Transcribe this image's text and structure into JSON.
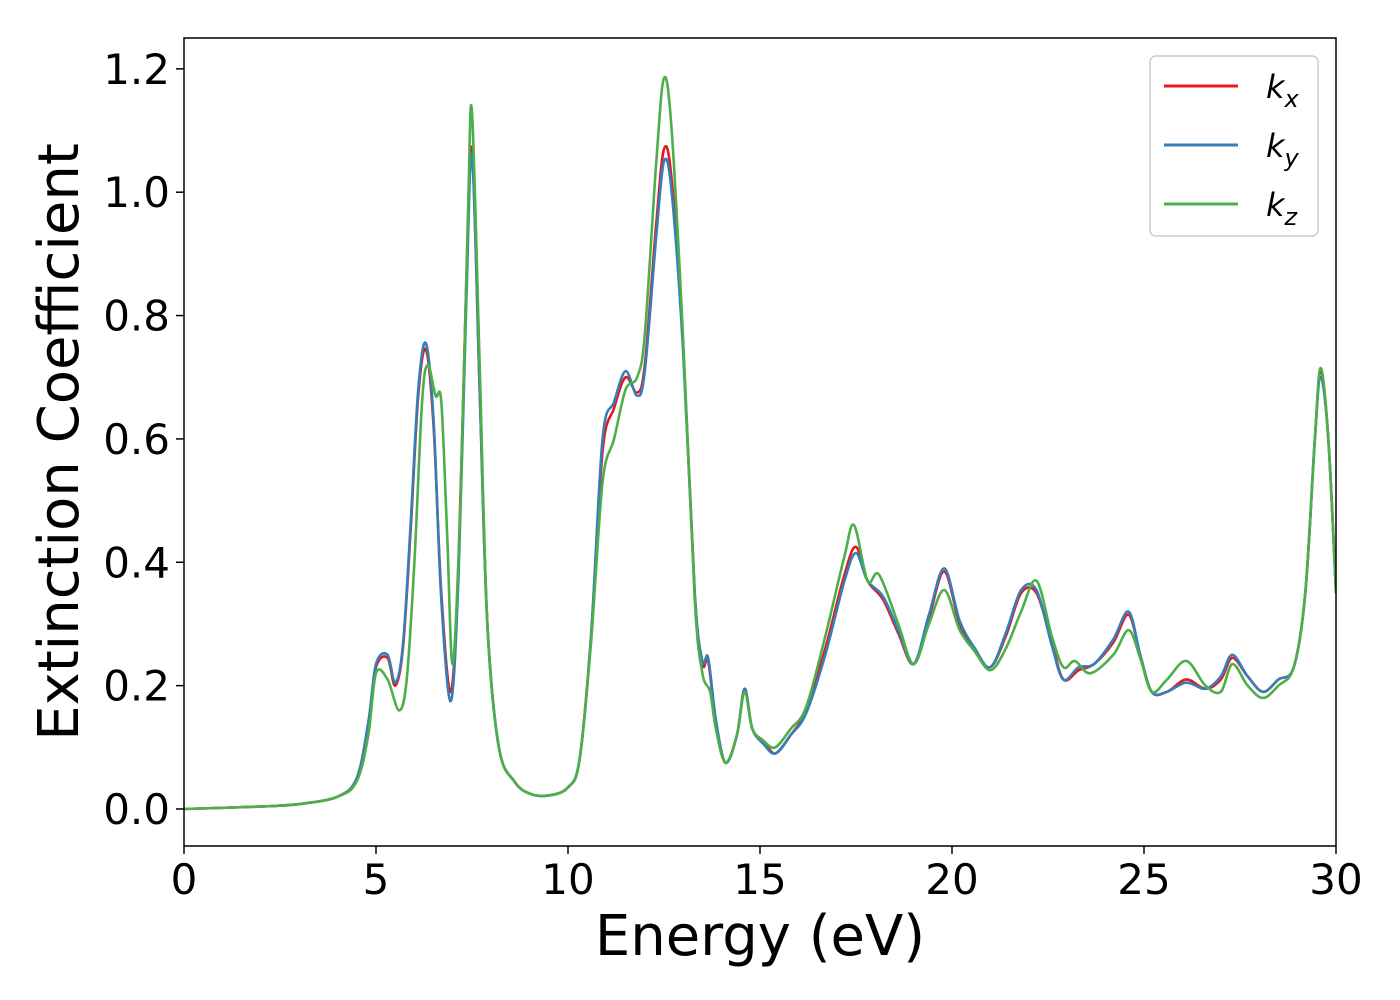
{
  "chart_data": {
    "type": "line",
    "title": "",
    "xlabel": "Energy (eV)",
    "ylabel": "Extinction Coefficient",
    "xlim": [
      0,
      30
    ],
    "ylim": [
      -0.06,
      1.25
    ],
    "xticks": [
      0,
      5,
      10,
      15,
      20,
      25,
      30
    ],
    "xtick_labels": [
      "0",
      "5",
      "10",
      "15",
      "20",
      "25",
      "30"
    ],
    "yticks": [
      0.0,
      0.2,
      0.4,
      0.6,
      0.8,
      1.0,
      1.2
    ],
    "ytick_labels": [
      "0.0",
      "0.2",
      "0.4",
      "0.6",
      "0.8",
      "1.0",
      "1.2"
    ],
    "grid": false,
    "legend_position": "top-right",
    "series": [
      {
        "name": "k_x",
        "label_base": "k",
        "label_sub": "x",
        "color": "#e41a1c",
        "points": [
          [
            0,
            0
          ],
          [
            2,
            0.004
          ],
          [
            3,
            0.008
          ],
          [
            4,
            0.02
          ],
          [
            4.5,
            0.05
          ],
          [
            4.8,
            0.14
          ],
          [
            5.0,
            0.23
          ],
          [
            5.3,
            0.245
          ],
          [
            5.5,
            0.2
          ],
          [
            5.7,
            0.26
          ],
          [
            5.9,
            0.45
          ],
          [
            6.1,
            0.67
          ],
          [
            6.3,
            0.745
          ],
          [
            6.5,
            0.62
          ],
          [
            6.7,
            0.35
          ],
          [
            6.95,
            0.19
          ],
          [
            7.15,
            0.4
          ],
          [
            7.35,
            0.85
          ],
          [
            7.5,
            1.07
          ],
          [
            7.7,
            0.68
          ],
          [
            7.9,
            0.3
          ],
          [
            8.2,
            0.1
          ],
          [
            8.6,
            0.045
          ],
          [
            9.0,
            0.025
          ],
          [
            9.5,
            0.022
          ],
          [
            10.0,
            0.035
          ],
          [
            10.3,
            0.08
          ],
          [
            10.6,
            0.28
          ],
          [
            10.9,
            0.58
          ],
          [
            11.2,
            0.65
          ],
          [
            11.5,
            0.7
          ],
          [
            11.8,
            0.675
          ],
          [
            12.0,
            0.72
          ],
          [
            12.3,
            0.95
          ],
          [
            12.5,
            1.07
          ],
          [
            12.7,
            1.02
          ],
          [
            13.0,
            0.75
          ],
          [
            13.3,
            0.35
          ],
          [
            13.5,
            0.235
          ],
          [
            13.65,
            0.24
          ],
          [
            13.85,
            0.14
          ],
          [
            14.1,
            0.075
          ],
          [
            14.4,
            0.12
          ],
          [
            14.6,
            0.195
          ],
          [
            14.8,
            0.13
          ],
          [
            15.1,
            0.11
          ],
          [
            15.4,
            0.09
          ],
          [
            15.8,
            0.12
          ],
          [
            16.2,
            0.16
          ],
          [
            16.7,
            0.26
          ],
          [
            17.2,
            0.38
          ],
          [
            17.5,
            0.425
          ],
          [
            17.8,
            0.37
          ],
          [
            18.2,
            0.34
          ],
          [
            18.6,
            0.285
          ],
          [
            19.0,
            0.235
          ],
          [
            19.4,
            0.31
          ],
          [
            19.8,
            0.385
          ],
          [
            20.2,
            0.3
          ],
          [
            20.6,
            0.255
          ],
          [
            21.0,
            0.23
          ],
          [
            21.4,
            0.28
          ],
          [
            21.8,
            0.35
          ],
          [
            22.2,
            0.35
          ],
          [
            22.6,
            0.27
          ],
          [
            22.9,
            0.21
          ],
          [
            23.3,
            0.225
          ],
          [
            23.7,
            0.235
          ],
          [
            24.2,
            0.27
          ],
          [
            24.6,
            0.315
          ],
          [
            24.9,
            0.25
          ],
          [
            25.2,
            0.19
          ],
          [
            25.6,
            0.19
          ],
          [
            26.1,
            0.21
          ],
          [
            26.6,
            0.195
          ],
          [
            27.0,
            0.21
          ],
          [
            27.3,
            0.245
          ],
          [
            27.7,
            0.215
          ],
          [
            28.1,
            0.19
          ],
          [
            28.5,
            0.21
          ],
          [
            28.9,
            0.23
          ],
          [
            29.2,
            0.35
          ],
          [
            29.45,
            0.6
          ],
          [
            29.6,
            0.71
          ],
          [
            29.8,
            0.6
          ],
          [
            30.0,
            0.35
          ]
        ]
      },
      {
        "name": "k_y",
        "label_base": "k",
        "label_sub": "y",
        "color": "#377eb8",
        "points": [
          [
            0,
            0
          ],
          [
            2,
            0.004
          ],
          [
            3,
            0.008
          ],
          [
            4,
            0.02
          ],
          [
            4.5,
            0.05
          ],
          [
            4.8,
            0.14
          ],
          [
            5.0,
            0.235
          ],
          [
            5.3,
            0.25
          ],
          [
            5.5,
            0.205
          ],
          [
            5.7,
            0.265
          ],
          [
            5.9,
            0.46
          ],
          [
            6.1,
            0.68
          ],
          [
            6.3,
            0.755
          ],
          [
            6.5,
            0.63
          ],
          [
            6.7,
            0.34
          ],
          [
            6.95,
            0.175
          ],
          [
            7.15,
            0.38
          ],
          [
            7.35,
            0.82
          ],
          [
            7.5,
            1.06
          ],
          [
            7.7,
            0.68
          ],
          [
            7.9,
            0.3
          ],
          [
            8.2,
            0.1
          ],
          [
            8.6,
            0.045
          ],
          [
            9.0,
            0.025
          ],
          [
            9.5,
            0.022
          ],
          [
            10.0,
            0.035
          ],
          [
            10.3,
            0.08
          ],
          [
            10.6,
            0.28
          ],
          [
            10.9,
            0.6
          ],
          [
            11.2,
            0.66
          ],
          [
            11.5,
            0.71
          ],
          [
            11.8,
            0.67
          ],
          [
            12.0,
            0.71
          ],
          [
            12.3,
            0.93
          ],
          [
            12.5,
            1.05
          ],
          [
            12.7,
            1.0
          ],
          [
            13.0,
            0.74
          ],
          [
            13.3,
            0.35
          ],
          [
            13.5,
            0.24
          ],
          [
            13.65,
            0.245
          ],
          [
            13.85,
            0.145
          ],
          [
            14.1,
            0.075
          ],
          [
            14.4,
            0.12
          ],
          [
            14.6,
            0.195
          ],
          [
            14.8,
            0.13
          ],
          [
            15.1,
            0.105
          ],
          [
            15.4,
            0.09
          ],
          [
            15.8,
            0.12
          ],
          [
            16.2,
            0.155
          ],
          [
            16.7,
            0.25
          ],
          [
            17.2,
            0.37
          ],
          [
            17.5,
            0.415
          ],
          [
            17.8,
            0.37
          ],
          [
            18.2,
            0.345
          ],
          [
            18.6,
            0.29
          ],
          [
            19.0,
            0.235
          ],
          [
            19.4,
            0.315
          ],
          [
            19.8,
            0.39
          ],
          [
            20.2,
            0.305
          ],
          [
            20.6,
            0.26
          ],
          [
            21.0,
            0.23
          ],
          [
            21.4,
            0.285
          ],
          [
            21.8,
            0.355
          ],
          [
            22.2,
            0.355
          ],
          [
            22.6,
            0.265
          ],
          [
            22.9,
            0.21
          ],
          [
            23.3,
            0.23
          ],
          [
            23.7,
            0.235
          ],
          [
            24.2,
            0.275
          ],
          [
            24.6,
            0.32
          ],
          [
            24.9,
            0.25
          ],
          [
            25.2,
            0.19
          ],
          [
            25.6,
            0.19
          ],
          [
            26.1,
            0.205
          ],
          [
            26.6,
            0.195
          ],
          [
            27.0,
            0.215
          ],
          [
            27.3,
            0.25
          ],
          [
            27.7,
            0.215
          ],
          [
            28.1,
            0.19
          ],
          [
            28.5,
            0.21
          ],
          [
            28.9,
            0.23
          ],
          [
            29.2,
            0.35
          ],
          [
            29.45,
            0.6
          ],
          [
            29.6,
            0.7
          ],
          [
            29.8,
            0.6
          ],
          [
            30.0,
            0.35
          ]
        ]
      },
      {
        "name": "k_z",
        "label_base": "k",
        "label_sub": "z",
        "color": "#4daf4a",
        "points": [
          [
            0,
            0
          ],
          [
            2,
            0.004
          ],
          [
            3,
            0.008
          ],
          [
            4,
            0.02
          ],
          [
            4.5,
            0.045
          ],
          [
            4.8,
            0.12
          ],
          [
            5.0,
            0.22
          ],
          [
            5.3,
            0.21
          ],
          [
            5.6,
            0.16
          ],
          [
            5.8,
            0.21
          ],
          [
            6.0,
            0.4
          ],
          [
            6.2,
            0.66
          ],
          [
            6.35,
            0.72
          ],
          [
            6.55,
            0.67
          ],
          [
            6.7,
            0.66
          ],
          [
            6.85,
            0.45
          ],
          [
            7.0,
            0.235
          ],
          [
            7.2,
            0.5
          ],
          [
            7.4,
            0.98
          ],
          [
            7.5,
            1.13
          ],
          [
            7.7,
            0.72
          ],
          [
            7.9,
            0.3
          ],
          [
            8.2,
            0.1
          ],
          [
            8.6,
            0.045
          ],
          [
            9.0,
            0.025
          ],
          [
            9.5,
            0.022
          ],
          [
            10.0,
            0.035
          ],
          [
            10.3,
            0.08
          ],
          [
            10.6,
            0.27
          ],
          [
            10.9,
            0.53
          ],
          [
            11.2,
            0.6
          ],
          [
            11.5,
            0.68
          ],
          [
            11.8,
            0.7
          ],
          [
            12.0,
            0.77
          ],
          [
            12.3,
            1.05
          ],
          [
            12.5,
            1.185
          ],
          [
            12.7,
            1.1
          ],
          [
            13.0,
            0.76
          ],
          [
            13.3,
            0.34
          ],
          [
            13.5,
            0.22
          ],
          [
            13.7,
            0.19
          ],
          [
            13.85,
            0.13
          ],
          [
            14.1,
            0.075
          ],
          [
            14.4,
            0.12
          ],
          [
            14.6,
            0.19
          ],
          [
            14.8,
            0.13
          ],
          [
            15.1,
            0.11
          ],
          [
            15.4,
            0.1
          ],
          [
            15.8,
            0.13
          ],
          [
            16.2,
            0.165
          ],
          [
            16.7,
            0.28
          ],
          [
            17.2,
            0.41
          ],
          [
            17.45,
            0.46
          ],
          [
            17.8,
            0.37
          ],
          [
            18.1,
            0.38
          ],
          [
            18.6,
            0.3
          ],
          [
            19.0,
            0.235
          ],
          [
            19.4,
            0.3
          ],
          [
            19.8,
            0.355
          ],
          [
            20.2,
            0.29
          ],
          [
            20.6,
            0.255
          ],
          [
            21.0,
            0.225
          ],
          [
            21.4,
            0.26
          ],
          [
            21.8,
            0.32
          ],
          [
            22.2,
            0.37
          ],
          [
            22.6,
            0.28
          ],
          [
            22.9,
            0.23
          ],
          [
            23.2,
            0.24
          ],
          [
            23.6,
            0.22
          ],
          [
            24.2,
            0.25
          ],
          [
            24.6,
            0.29
          ],
          [
            24.9,
            0.245
          ],
          [
            25.2,
            0.19
          ],
          [
            25.6,
            0.21
          ],
          [
            26.1,
            0.24
          ],
          [
            26.6,
            0.2
          ],
          [
            27.0,
            0.19
          ],
          [
            27.3,
            0.235
          ],
          [
            27.7,
            0.2
          ],
          [
            28.1,
            0.18
          ],
          [
            28.5,
            0.2
          ],
          [
            28.9,
            0.23
          ],
          [
            29.2,
            0.35
          ],
          [
            29.45,
            0.6
          ],
          [
            29.6,
            0.715
          ],
          [
            29.8,
            0.6
          ],
          [
            30.0,
            0.35
          ]
        ]
      }
    ]
  }
}
